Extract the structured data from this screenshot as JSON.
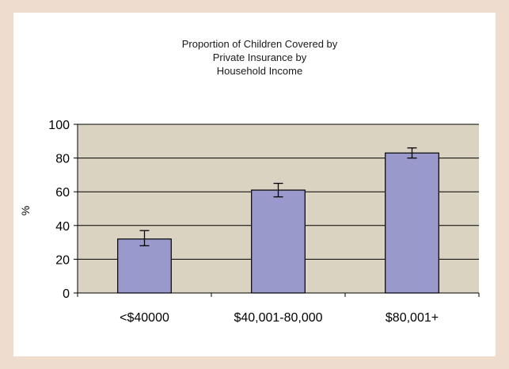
{
  "chart_data": {
    "type": "bar",
    "title_lines": [
      "Proportion of Children Covered by",
      "Private Insurance by",
      "Household Income"
    ],
    "xlabel": "",
    "ylabel": "%",
    "categories": [
      "<$40000",
      "$40,001-80,000",
      "$80,001+"
    ],
    "values": [
      32,
      61,
      83
    ],
    "error_low": [
      28,
      57,
      80
    ],
    "error_high": [
      37,
      65,
      86
    ],
    "yticks": [
      0,
      20,
      40,
      60,
      80,
      100
    ],
    "ylim": [
      0,
      100
    ],
    "grid": true,
    "legend": "none",
    "colors": {
      "plot_background": "#dbd3c1",
      "bar_fill": "#9999cc",
      "bar_stroke": "#000000",
      "grid": "#000000"
    }
  }
}
